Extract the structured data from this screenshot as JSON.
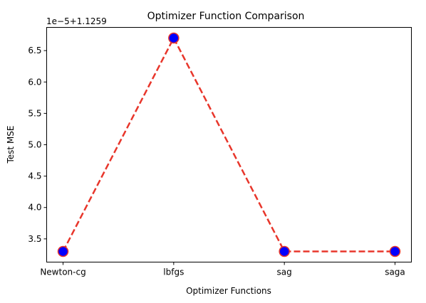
{
  "chart_data": {
    "type": "line",
    "title": "Optimizer Function Comparison",
    "xlabel": "Optimizer Functions",
    "ylabel": "Test MSE",
    "y_offset_label": "1e−5+1.1259",
    "categories": [
      "Newton-cg",
      "lbfgs",
      "sag",
      "saga"
    ],
    "series": [
      {
        "values": [
          3.3,
          6.7,
          3.3,
          3.3
        ],
        "line_style": "dashed",
        "line_color": "#e8362b",
        "marker": "circle",
        "marker_face_color": "#0000ff",
        "marker_edge_color": "#e8362b"
      }
    ],
    "ylim": [
      3.13,
      6.87
    ],
    "yticks": [
      3.5,
      4.0,
      4.5,
      5.0,
      5.5,
      6.0,
      6.5
    ],
    "ytick_labels": [
      "3.5",
      "4.0",
      "4.5",
      "5.0",
      "5.5",
      "6.0",
      "6.5"
    ],
    "grid": false,
    "legend": "none"
  }
}
